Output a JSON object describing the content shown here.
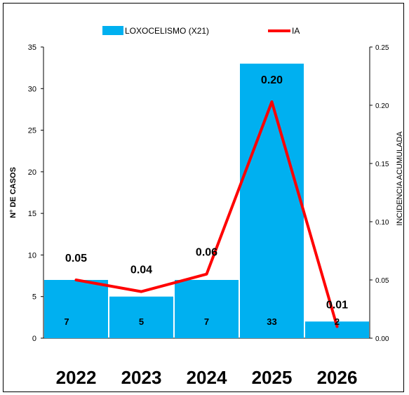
{
  "chart_data": {
    "type": "bar",
    "categories": [
      "2022",
      "2023",
      "2024",
      "2025",
      "2026"
    ],
    "series": [
      {
        "name": "LOXOCELISMO (X21)",
        "type": "bar",
        "axis": "left",
        "color": "#00B0F0",
        "values": [
          7,
          5,
          7,
          33,
          2
        ],
        "data_labels": [
          "7",
          "5",
          "7",
          "33",
          "2"
        ]
      },
      {
        "name": "IA",
        "type": "line",
        "axis": "right",
        "color": "#FF0000",
        "values": [
          0.05,
          0.04,
          0.055,
          0.203,
          0.01
        ],
        "data_labels": [
          "0.05",
          "0.04",
          "0.06",
          "0.20",
          "0.01"
        ]
      }
    ],
    "ylabel": "N° DE CASOS",
    "ylabel_right": "INCIDENCIA ACUMULADA",
    "ylim": [
      0,
      35
    ],
    "ylim_right": [
      0,
      0.25
    ],
    "yticks": [
      "0",
      "5",
      "10",
      "15",
      "20",
      "25",
      "30",
      "35"
    ],
    "yticks_right": [
      "0.00",
      "0.05",
      "0.10",
      "0.15",
      "0.20",
      "0.25"
    ],
    "legend_position": "top-center",
    "grid": false
  }
}
